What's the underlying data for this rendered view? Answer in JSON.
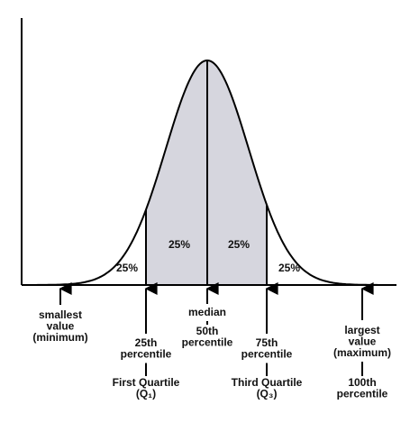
{
  "regions": [
    "25%",
    "25%",
    "25%",
    "25%"
  ],
  "markers": [
    {
      "above": [
        "smallest",
        "value",
        "(minimum)"
      ],
      "below": []
    },
    {
      "above": [
        "25th",
        "percentile"
      ],
      "below": [
        "First Quartile",
        "(Q₁)"
      ]
    },
    {
      "above": [
        "median"
      ],
      "below": [
        "50th",
        "percentile"
      ]
    },
    {
      "above": [
        "75th",
        "percentile"
      ],
      "below": [
        "Third Quartile",
        "(Q₃)"
      ]
    },
    {
      "above": [
        "largest",
        "value",
        "(maximum)"
      ],
      "below": [
        "100th",
        "percentile"
      ]
    }
  ]
}
